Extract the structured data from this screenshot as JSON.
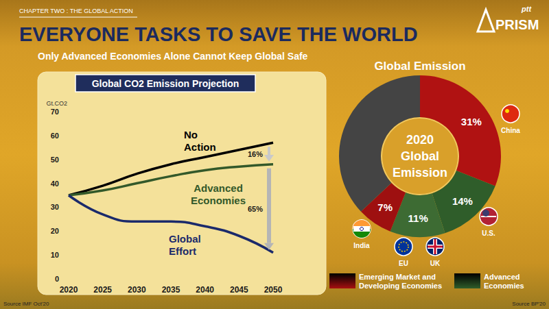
{
  "header": {
    "chapter": "CHAPTER TWO : THE GLOBAL ACTION",
    "title": "EVERYONE TASKS TO SAVE THE WORLD",
    "subtitle": "Only Advanced Economies Alone Cannot Keep Global Safe",
    "logo": [
      "ptt",
      "PRISM"
    ]
  },
  "chart_data": [
    {
      "type": "line",
      "title": "Global CO2 Emission Projection",
      "ylabel": "Gt.CO2",
      "x": [
        2020,
        2025,
        2030,
        2035,
        2040,
        2045,
        2050
      ],
      "xlim": [
        2020,
        2050
      ],
      "xticks": [
        2020,
        2025,
        2030,
        2035,
        2040,
        2045,
        2050
      ],
      "ylim": [
        0,
        70
      ],
      "yticks": [
        0,
        10,
        20,
        30,
        40,
        50,
        60,
        70
      ],
      "grid": false,
      "series": [
        {
          "name": "No Action",
          "color": "#000000",
          "values": [
            35,
            39,
            44,
            48,
            51,
            54,
            57
          ]
        },
        {
          "name": "Advanced Economies",
          "color": "#33592a",
          "values": [
            35,
            37,
            40,
            43,
            45.5,
            47,
            48
          ]
        },
        {
          "name": "Global Effort",
          "color": "#1b2a6b",
          "values": [
            35,
            27,
            24,
            24,
            22,
            18,
            11
          ]
        }
      ],
      "annotations": [
        "16%",
        "65%"
      ],
      "source": "Source IMF Oct'20"
    },
    {
      "type": "pie",
      "title": "Global Emission",
      "center_text": "2020 Global Emission",
      "values": [
        31,
        14,
        11,
        7,
        37
      ],
      "value_labels": [
        "31%",
        "14%",
        "11%",
        "7%",
        null
      ],
      "colors": [
        "#b01212",
        "#2f5d2a",
        "#3d6b33",
        "#9e1010",
        "#444444"
      ],
      "countries": [
        [
          "China"
        ],
        [
          "U.S."
        ],
        [
          "EU",
          "UK"
        ],
        [
          "India"
        ],
        []
      ],
      "groups": [
        {
          "name": "Emerging Market and Developing Economies",
          "color": "#a81010"
        },
        {
          "name": "Advanced Economies",
          "color": "#2f5d2a"
        }
      ],
      "legend": "bottom",
      "source": "Source BP'20"
    }
  ]
}
